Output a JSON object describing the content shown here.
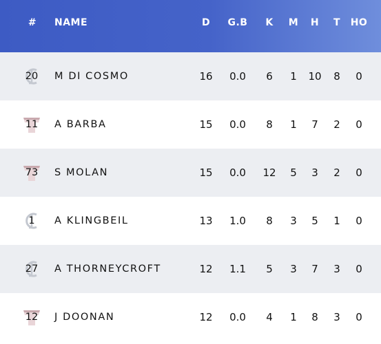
{
  "headers": {
    "num": "#",
    "name": "NAME",
    "d": "D",
    "gb": "G.B",
    "k": "K",
    "m": "M",
    "h": "H",
    "t": "T",
    "ho": "HO"
  },
  "colors": {
    "header_start": "#3d5bc4",
    "header_end": "#6f8edc",
    "row_shaded": "#eceef2",
    "row_plain": "#ffffff"
  },
  "rows": [
    {
      "number": "20",
      "badge_icon": "club-logo-icon",
      "name": "M DI COSMO",
      "d": "16",
      "gb": "0.0",
      "k": "6",
      "m": "1",
      "h": "10",
      "t": "8",
      "ho": "0"
    },
    {
      "number": "11",
      "badge_icon": "guernsey-icon",
      "name": "A BARBA",
      "d": "15",
      "gb": "0.0",
      "k": "8",
      "m": "1",
      "h": "7",
      "t": "2",
      "ho": "0"
    },
    {
      "number": "73",
      "badge_icon": "guernsey-icon",
      "name": "S MOLAN",
      "d": "15",
      "gb": "0.0",
      "k": "12",
      "m": "5",
      "h": "3",
      "t": "2",
      "ho": "0"
    },
    {
      "number": "1",
      "badge_icon": "club-logo-icon",
      "name": "A KLINGBEIL",
      "d": "13",
      "gb": "1.0",
      "k": "8",
      "m": "3",
      "h": "5",
      "t": "1",
      "ho": "0"
    },
    {
      "number": "27",
      "badge_icon": "club-logo-icon",
      "name": "A THORNEYCROFT",
      "d": "12",
      "gb": "1.1",
      "k": "5",
      "m": "3",
      "h": "7",
      "t": "3",
      "ho": "0"
    },
    {
      "number": "12",
      "badge_icon": "guernsey-icon",
      "name": "J DOONAN",
      "d": "12",
      "gb": "0.0",
      "k": "4",
      "m": "1",
      "h": "8",
      "t": "3",
      "ho": "0"
    }
  ]
}
